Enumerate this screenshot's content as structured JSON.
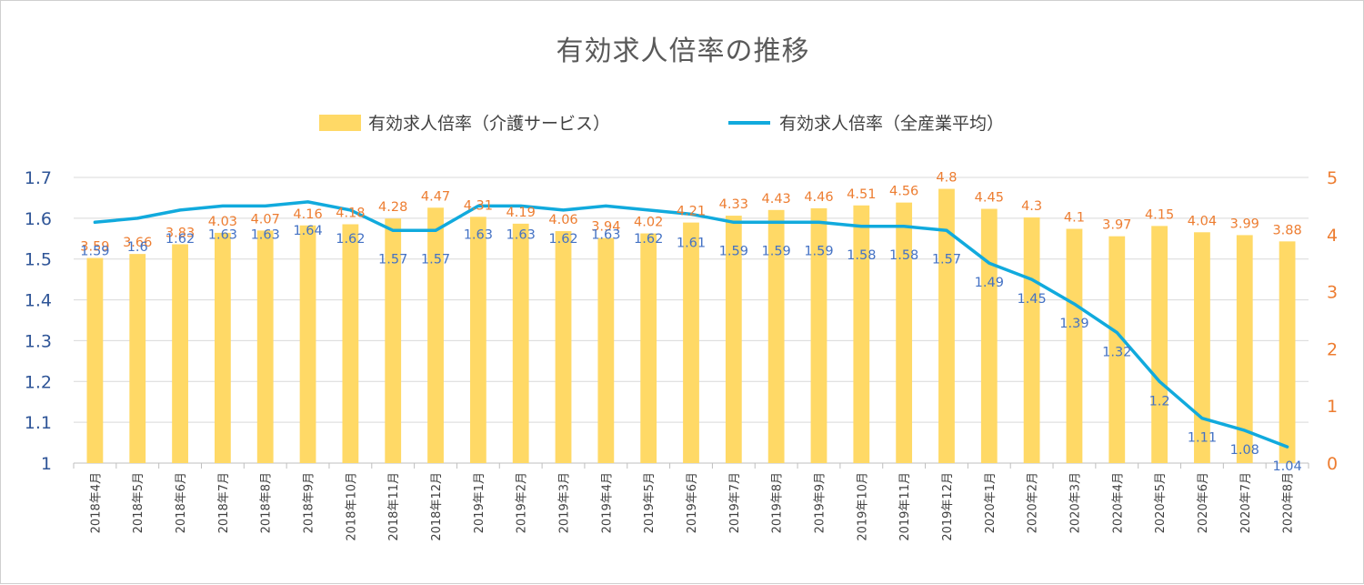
{
  "colors": {
    "bar": "#ffd966",
    "line": "#11aadd",
    "left_axis": "#2f5597",
    "right_axis": "#ed7d31",
    "bar_label": "#ed7d31",
    "line_label": "#4472c4",
    "grid": "#d9d9d9"
  },
  "chart_data": {
    "type": "bar",
    "title": "有効求人倍率の推移",
    "categories": [
      "2018年4月",
      "2018年5月",
      "2018年6月",
      "2018年7月",
      "2018年8月",
      "2018年9月",
      "2018年10月",
      "2018年11月",
      "2018年12月",
      "2019年1月",
      "2019年2月",
      "2019年3月",
      "2019年4月",
      "2019年5月",
      "2019年6月",
      "2019年7月",
      "2019年8月",
      "2019年9月",
      "2019年10月",
      "2019年11月",
      "2019年12月",
      "2020年1月",
      "2020年2月",
      "2020年3月",
      "2020年4月",
      "2020年5月",
      "2020年6月",
      "2020年7月",
      "2020年8月"
    ],
    "series": [
      {
        "name": "有効求人倍率（介護サービス）",
        "type": "bar",
        "axis": "right",
        "values": [
          3.59,
          3.66,
          3.83,
          4.03,
          4.07,
          4.16,
          4.18,
          4.28,
          4.47,
          4.31,
          4.19,
          4.06,
          3.94,
          4.02,
          4.21,
          4.33,
          4.43,
          4.46,
          4.51,
          4.56,
          4.8,
          4.45,
          4.3,
          4.1,
          3.97,
          4.15,
          4.04,
          3.99,
          3.88
        ]
      },
      {
        "name": "有効求人倍率（全産業平均）",
        "type": "line",
        "axis": "left",
        "values": [
          1.59,
          1.6,
          1.62,
          1.63,
          1.63,
          1.64,
          1.62,
          1.57,
          1.57,
          1.63,
          1.63,
          1.62,
          1.63,
          1.62,
          1.61,
          1.59,
          1.59,
          1.59,
          1.58,
          1.58,
          1.57,
          1.49,
          1.45,
          1.39,
          1.32,
          1.2,
          1.11,
          1.08,
          1.04
        ]
      }
    ],
    "y_left": {
      "range": [
        1,
        1.7
      ],
      "ticks": [
        "1",
        "1.1",
        "1.2",
        "1.3",
        "1.4",
        "1.5",
        "1.6",
        "1.7"
      ]
    },
    "y_right": {
      "range": [
        0,
        5
      ],
      "ticks": [
        "0",
        "1",
        "2",
        "3",
        "4",
        "5"
      ]
    },
    "grid": true,
    "legend": "top"
  }
}
